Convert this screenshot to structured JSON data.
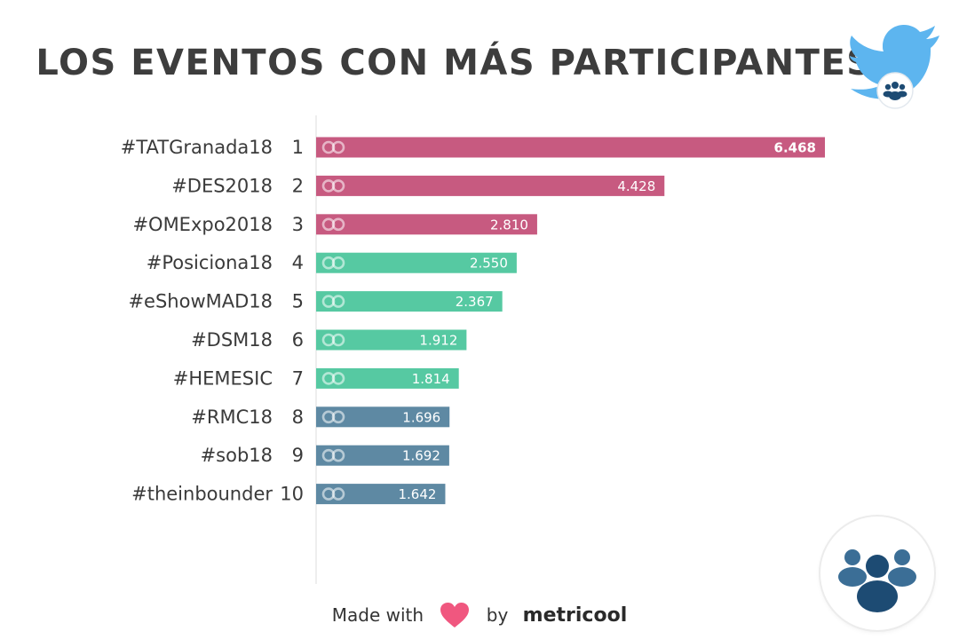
{
  "title": "LOS EVENTOS CON MÁS PARTICIPANTES",
  "footer": {
    "made_with": "Made with",
    "by": "by",
    "brand": "metricool"
  },
  "icons": {
    "header": "twitter-bird-icon",
    "overlay": "community-icon",
    "footer": "heart-icon",
    "bar": "infinity-link-icon"
  },
  "colors": {
    "tier1": "#c75a80",
    "tier2": "#56c9a2",
    "tier3": "#5e89a3",
    "heart": "#f0577f",
    "twitter": "#5db5ef",
    "community": "#1d4b73"
  },
  "chart_data": {
    "type": "bar",
    "orientation": "horizontal",
    "title": "LOS EVENTOS CON MÁS PARTICIPANTES",
    "categories": [
      "#TATGranada18",
      "#DES2018",
      "#OMExpo2018",
      "#Posiciona18",
      "#eShowMAD18",
      "#DSM18",
      "#HEMESIC",
      "#RMC18",
      "#sob18",
      "#theinbounder"
    ],
    "ranks": [
      "1",
      "2",
      "3",
      "4",
      "5",
      "6",
      "7",
      "8",
      "9",
      "10"
    ],
    "values": [
      6468,
      4428,
      2810,
      2550,
      2367,
      1912,
      1814,
      1696,
      1692,
      1642
    ],
    "value_labels": [
      "6.468",
      "4.428",
      "2.810",
      "2.550",
      "2.367",
      "1.912",
      "1.814",
      "1.696",
      "1.692",
      "1.642"
    ],
    "tiers": [
      1,
      1,
      1,
      2,
      2,
      2,
      2,
      3,
      3,
      3
    ],
    "grid": false,
    "legend": "none"
  }
}
